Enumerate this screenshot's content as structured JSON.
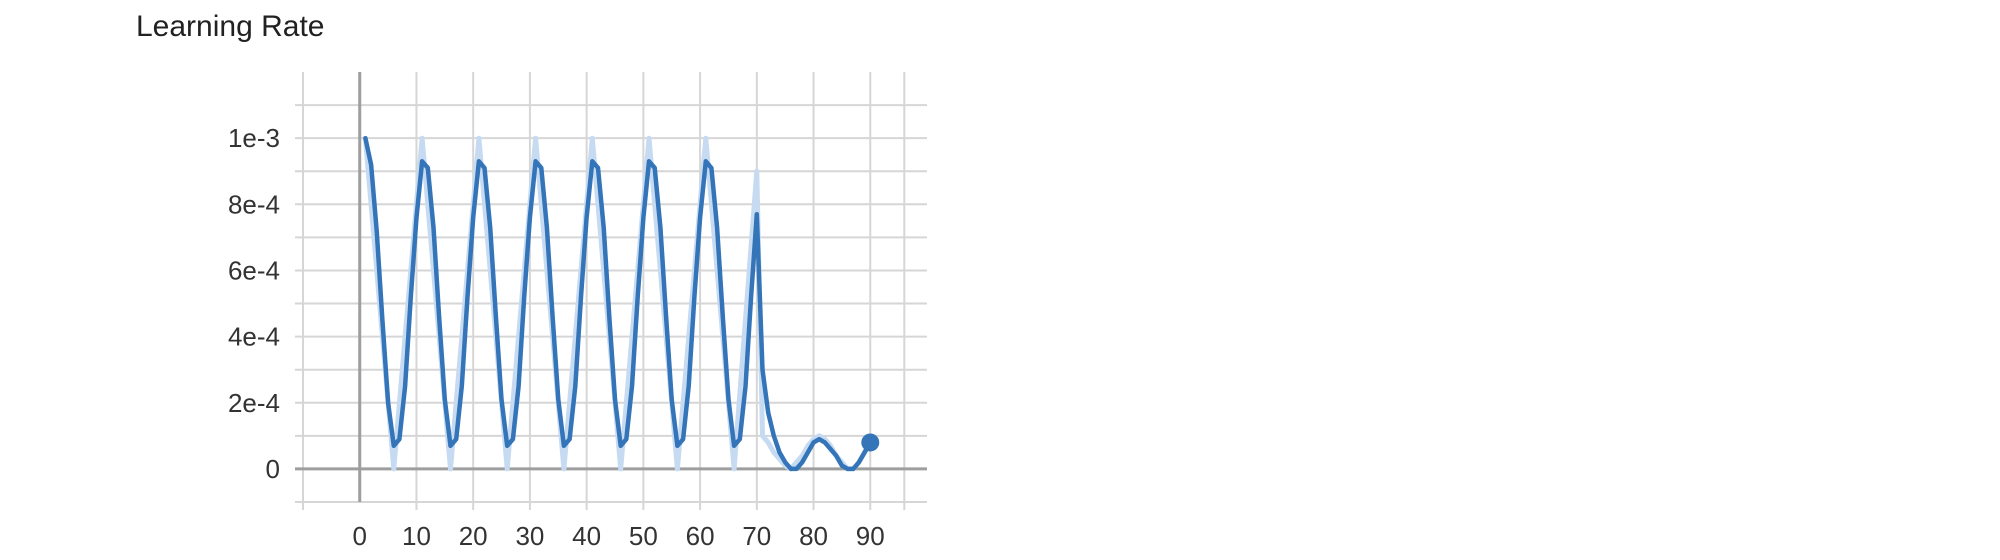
{
  "card": {
    "title": "Learning Rate"
  },
  "colors": {
    "line": "#3474b8",
    "raw_line": "#c6dbf1",
    "grid": "#d6d6d6",
    "axis": "#9e9e9e",
    "text": "#333333"
  },
  "chart_data": {
    "type": "line",
    "title": "Learning Rate",
    "xlabel": "",
    "ylabel": "",
    "xlim": [
      -10,
      100
    ],
    "ylim": [
      -0.0001,
      0.0012
    ],
    "x_ticks": [
      0,
      10,
      20,
      30,
      40,
      50,
      60,
      70,
      80,
      90
    ],
    "x_tick_labels": [
      "0",
      "10",
      "20",
      "30",
      "40",
      "50",
      "60",
      "70",
      "80",
      "90"
    ],
    "y_ticks": [
      0,
      0.0002,
      0.0004,
      0.0006,
      0.0008,
      0.001
    ],
    "y_tick_labels": [
      "0",
      "2e-4",
      "4e-4",
      "6e-4",
      "8e-4",
      "1e-3"
    ],
    "grid": true,
    "series": [
      {
        "role": "raw",
        "x": [
          1,
          6,
          11,
          16,
          21,
          26,
          31,
          36,
          41,
          46,
          51,
          56,
          61,
          66,
          70,
          71,
          72,
          73,
          74,
          75,
          76,
          77,
          78,
          79,
          80,
          81,
          82,
          83,
          84,
          85,
          86,
          87,
          88,
          89,
          90
        ],
        "y": [
          0.001,
          0.0,
          0.001,
          0.0,
          0.001,
          0.0,
          0.001,
          0.0,
          0.001,
          0.0,
          0.001,
          0.0,
          0.001,
          0.0,
          0.0009,
          0.0001,
          8e-05,
          5e-05,
          3e-05,
          1e-05,
          0.0,
          2e-05,
          4e-05,
          7e-05,
          9e-05,
          0.0001,
          9e-05,
          7e-05,
          4e-05,
          2e-05,
          0.0,
          0.0,
          2e-05,
          5e-05,
          8e-05
        ]
      },
      {
        "role": "smoothed",
        "x": [
          1,
          2,
          3,
          4,
          5,
          6,
          7,
          8,
          9,
          10,
          11,
          12,
          13,
          14,
          15,
          16,
          17,
          18,
          19,
          20,
          21,
          22,
          23,
          24,
          25,
          26,
          27,
          28,
          29,
          30,
          31,
          32,
          33,
          34,
          35,
          36,
          37,
          38,
          39,
          40,
          41,
          42,
          43,
          44,
          45,
          46,
          47,
          48,
          49,
          50,
          51,
          52,
          53,
          54,
          55,
          56,
          57,
          58,
          59,
          60,
          61,
          62,
          63,
          64,
          65,
          66,
          67,
          68,
          69,
          70,
          71,
          72,
          73,
          74,
          75,
          76,
          77,
          78,
          79,
          80,
          81,
          82,
          83,
          84,
          85,
          86,
          87,
          88,
          89,
          90
        ],
        "y": [
          0.001,
          0.00092,
          0.00072,
          0.00045,
          0.0002,
          7e-05,
          9e-05,
          0.00025,
          0.00052,
          0.00076,
          0.00093,
          0.00091,
          0.00073,
          0.00046,
          0.00021,
          7e-05,
          9e-05,
          0.00025,
          0.00052,
          0.00076,
          0.00093,
          0.00091,
          0.00073,
          0.00046,
          0.00021,
          7e-05,
          9e-05,
          0.00025,
          0.00052,
          0.00076,
          0.00093,
          0.00091,
          0.00073,
          0.00046,
          0.00021,
          7e-05,
          9e-05,
          0.00025,
          0.00052,
          0.00076,
          0.00093,
          0.00091,
          0.00073,
          0.00046,
          0.00021,
          7e-05,
          9e-05,
          0.00025,
          0.00052,
          0.00076,
          0.00093,
          0.00091,
          0.00073,
          0.00046,
          0.00021,
          7e-05,
          9e-05,
          0.00025,
          0.00052,
          0.00076,
          0.00093,
          0.00091,
          0.00073,
          0.00046,
          0.00021,
          7e-05,
          9e-05,
          0.00025,
          0.00052,
          0.00077,
          0.0003,
          0.00017,
          0.0001,
          5e-05,
          2e-05,
          0.0,
          0.0,
          2e-05,
          5e-05,
          8e-05,
          9e-05,
          8e-05,
          6e-05,
          4e-05,
          1e-05,
          0.0,
          0.0,
          2e-05,
          5e-05,
          8e-05
        ]
      }
    ],
    "last_point": {
      "x": 90,
      "y": 8e-05
    }
  }
}
